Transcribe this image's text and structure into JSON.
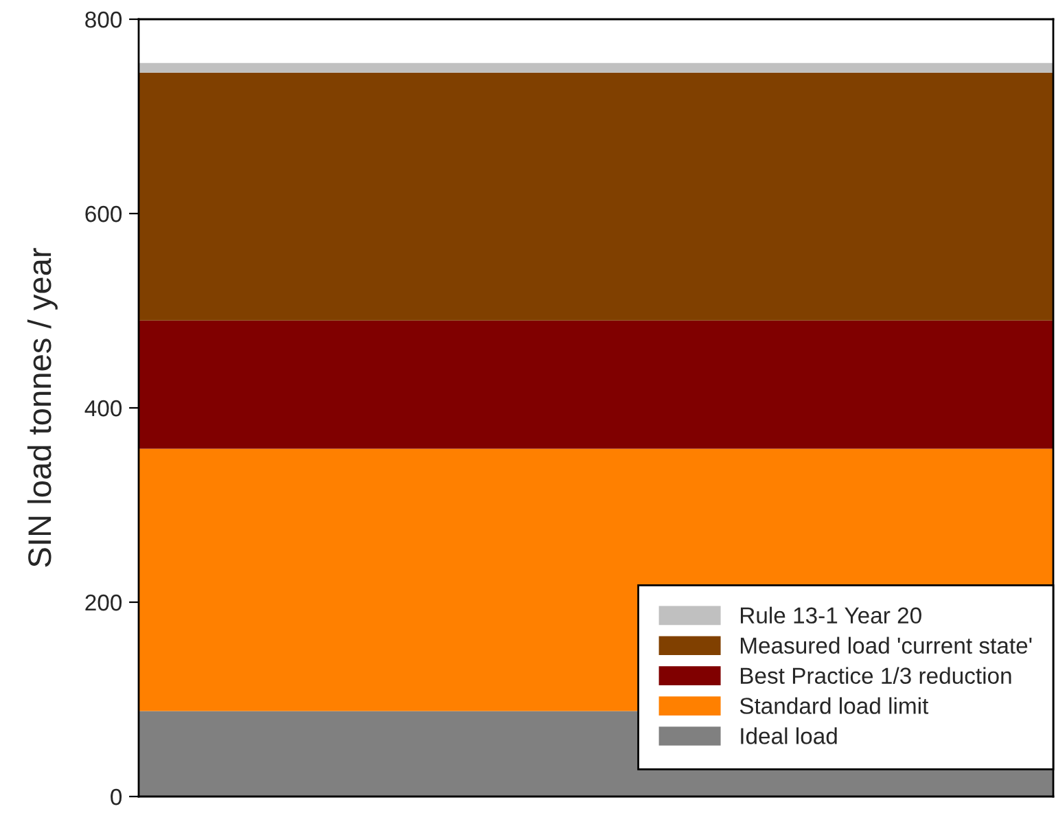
{
  "chart_data": {
    "type": "bar",
    "stacked": true,
    "ylabel": "SIN load tonnes / year",
    "categories": [
      null
    ],
    "series": [
      {
        "name": "Ideal load",
        "color": "#808080",
        "values": [
          88
        ]
      },
      {
        "name": "Standard load limit",
        "color": "#ff8000",
        "values": [
          270
        ]
      },
      {
        "name": "Best Practice 1/3 reduction",
        "color": "#800000",
        "values": [
          132
        ]
      },
      {
        "name": "Measured load 'current state'",
        "color": "#804000",
        "values": [
          255
        ]
      },
      {
        "name": "Rule 13-1 Year 20",
        "color": "#c0c0c0",
        "values": [
          10
        ]
      }
    ],
    "ylim": [
      0,
      800
    ],
    "yticks": [
      0,
      200,
      400,
      600,
      800
    ],
    "grid": false,
    "legend": "bottom right"
  }
}
